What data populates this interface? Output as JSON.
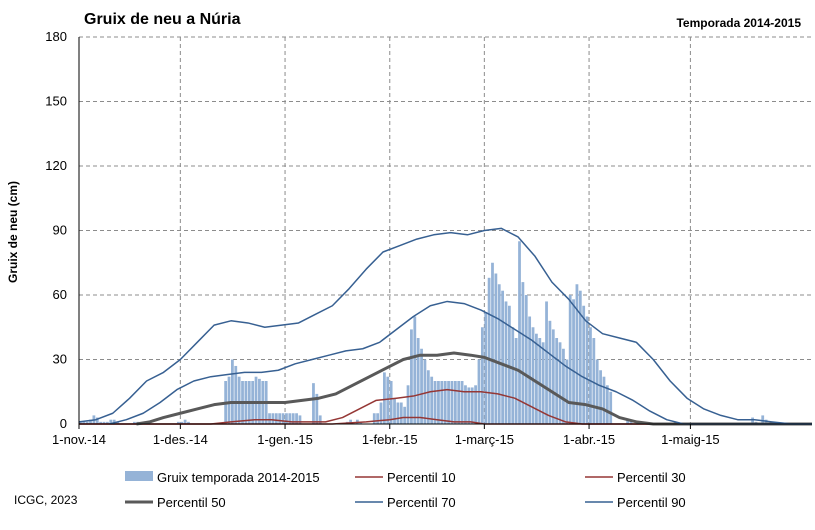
{
  "chart_data": {
    "type": "bar",
    "title": "Gruix de neu a Núria",
    "subtitle": "Temporada 2014-2015",
    "ylabel": "Gruix de neu (cm)",
    "xlabel": "",
    "ylim": [
      0,
      180
    ],
    "yticks": [
      0,
      30,
      60,
      90,
      120,
      150,
      180
    ],
    "xlim": [
      "2014-11-01",
      "2015-06-06"
    ],
    "xticks": [
      {
        "date": "2014-11-01",
        "label": "1-nov.-14"
      },
      {
        "date": "2014-12-01",
        "label": "1-des.-14"
      },
      {
        "date": "2015-01-01",
        "label": "1-gen.-15"
      },
      {
        "date": "2015-02-01",
        "label": "1-febr.-15"
      },
      {
        "date": "2015-03-01",
        "label": "1-març-15"
      },
      {
        "date": "2015-04-01",
        "label": "1-abr.-15"
      },
      {
        "date": "2015-05-01",
        "label": "1-maig-15"
      }
    ],
    "grid": true,
    "legend_position": "bottom",
    "credit": "ICGC, 2023",
    "legend_order": [
      "Gruix temporada 2014-2015",
      "Percentil 10",
      "Percentil 30",
      "Percentil 50",
      "Percentil 70",
      "Percentil 90"
    ],
    "bars": {
      "name": "Gruix temporada 2014-2015",
      "color": "#95b3d7",
      "points": [
        [
          "2014-11-01",
          1
        ],
        [
          "2014-11-02",
          1
        ],
        [
          "2014-11-03",
          1
        ],
        [
          "2014-11-04",
          2
        ],
        [
          "2014-11-05",
          4
        ],
        [
          "2014-11-06",
          3
        ],
        [
          "2014-11-07",
          1
        ],
        [
          "2014-11-08",
          1
        ],
        [
          "2014-11-09",
          1
        ],
        [
          "2014-11-10",
          2
        ],
        [
          "2014-11-11",
          2
        ],
        [
          "2014-11-12",
          1
        ],
        [
          "2014-11-17",
          1
        ],
        [
          "2014-11-18",
          1
        ],
        [
          "2014-11-30",
          1
        ],
        [
          "2014-12-01",
          1
        ],
        [
          "2014-12-02",
          2
        ],
        [
          "2014-12-03",
          1
        ],
        [
          "2014-12-14",
          20
        ],
        [
          "2014-12-15",
          22
        ],
        [
          "2014-12-16",
          30
        ],
        [
          "2014-12-17",
          27
        ],
        [
          "2014-12-18",
          22
        ],
        [
          "2014-12-19",
          20
        ],
        [
          "2014-12-20",
          20
        ],
        [
          "2014-12-21",
          20
        ],
        [
          "2014-12-22",
          20
        ],
        [
          "2014-12-23",
          22
        ],
        [
          "2014-12-24",
          21
        ],
        [
          "2014-12-25",
          20
        ],
        [
          "2014-12-26",
          20
        ],
        [
          "2014-12-27",
          5
        ],
        [
          "2014-12-28",
          5
        ],
        [
          "2014-12-29",
          5
        ],
        [
          "2014-12-30",
          5
        ],
        [
          "2014-12-31",
          5
        ],
        [
          "2015-01-01",
          5
        ],
        [
          "2015-01-02",
          5
        ],
        [
          "2015-01-03",
          5
        ],
        [
          "2015-01-04",
          5
        ],
        [
          "2015-01-05",
          4
        ],
        [
          "2015-01-09",
          19
        ],
        [
          "2015-01-10",
          14
        ],
        [
          "2015-01-11",
          4
        ],
        [
          "2015-01-19",
          1
        ],
        [
          "2015-01-20",
          2
        ],
        [
          "2015-01-22",
          2
        ],
        [
          "2015-01-23",
          1
        ],
        [
          "2015-01-27",
          5
        ],
        [
          "2015-01-28",
          5
        ],
        [
          "2015-01-29",
          10
        ],
        [
          "2015-01-30",
          24
        ],
        [
          "2015-01-31",
          22
        ],
        [
          "2015-02-01",
          20
        ],
        [
          "2015-02-02",
          12
        ],
        [
          "2015-02-03",
          10
        ],
        [
          "2015-02-04",
          10
        ],
        [
          "2015-02-05",
          8
        ],
        [
          "2015-02-06",
          18
        ],
        [
          "2015-02-07",
          44
        ],
        [
          "2015-02-08",
          50
        ],
        [
          "2015-02-09",
          40
        ],
        [
          "2015-02-10",
          35
        ],
        [
          "2015-02-11",
          30
        ],
        [
          "2015-02-12",
          25
        ],
        [
          "2015-02-13",
          22
        ],
        [
          "2015-02-14",
          20
        ],
        [
          "2015-02-15",
          20
        ],
        [
          "2015-02-16",
          20
        ],
        [
          "2015-02-17",
          20
        ],
        [
          "2015-02-18",
          20
        ],
        [
          "2015-02-19",
          20
        ],
        [
          "2015-02-20",
          20
        ],
        [
          "2015-02-21",
          20
        ],
        [
          "2015-02-22",
          20
        ],
        [
          "2015-02-23",
          18
        ],
        [
          "2015-02-24",
          17
        ],
        [
          "2015-02-25",
          17
        ],
        [
          "2015-02-26",
          18
        ],
        [
          "2015-02-27",
          30
        ],
        [
          "2015-02-28",
          45
        ],
        [
          "2015-03-01",
          52
        ],
        [
          "2015-03-02",
          68
        ],
        [
          "2015-03-03",
          75
        ],
        [
          "2015-03-04",
          70
        ],
        [
          "2015-03-05",
          65
        ],
        [
          "2015-03-06",
          62
        ],
        [
          "2015-03-07",
          57
        ],
        [
          "2015-03-08",
          55
        ],
        [
          "2015-03-09",
          45
        ],
        [
          "2015-03-10",
          40
        ],
        [
          "2015-03-11",
          85
        ],
        [
          "2015-03-12",
          66
        ],
        [
          "2015-03-13",
          60
        ],
        [
          "2015-03-14",
          50
        ],
        [
          "2015-03-15",
          45
        ],
        [
          "2015-03-16",
          42
        ],
        [
          "2015-03-17",
          40
        ],
        [
          "2015-03-18",
          38
        ],
        [
          "2015-03-19",
          57
        ],
        [
          "2015-03-20",
          48
        ],
        [
          "2015-03-21",
          44
        ],
        [
          "2015-03-22",
          40
        ],
        [
          "2015-03-23",
          38
        ],
        [
          "2015-03-24",
          35
        ],
        [
          "2015-03-25",
          30
        ],
        [
          "2015-03-26",
          60
        ],
        [
          "2015-03-27",
          58
        ],
        [
          "2015-03-28",
          65
        ],
        [
          "2015-03-29",
          62
        ],
        [
          "2015-03-30",
          55
        ],
        [
          "2015-03-31",
          50
        ],
        [
          "2015-04-01",
          45
        ],
        [
          "2015-04-02",
          40
        ],
        [
          "2015-04-03",
          30
        ],
        [
          "2015-04-04",
          25
        ],
        [
          "2015-04-05",
          22
        ],
        [
          "2015-04-06",
          18
        ],
        [
          "2015-04-07",
          15
        ],
        [
          "2015-04-12",
          2
        ],
        [
          "2015-04-13",
          2
        ],
        [
          "2015-05-19",
          3
        ],
        [
          "2015-05-20",
          1
        ],
        [
          "2015-05-22",
          4
        ],
        [
          "2015-05-23",
          2
        ]
      ]
    },
    "series": [
      {
        "name": "Percentil 10",
        "color": "#953735",
        "width": 1.5,
        "points": [
          [
            "2014-11-01",
            0
          ],
          [
            "2015-01-15",
            0
          ],
          [
            "2015-01-25",
            1
          ],
          [
            "2015-02-01",
            2
          ],
          [
            "2015-02-05",
            3
          ],
          [
            "2015-02-10",
            3
          ],
          [
            "2015-02-15",
            2
          ],
          [
            "2015-02-20",
            1
          ],
          [
            "2015-02-25",
            1
          ],
          [
            "2015-03-01",
            0
          ],
          [
            "2015-06-06",
            0
          ]
        ]
      },
      {
        "name": "Percentil 30",
        "color": "#953735",
        "width": 1.5,
        "points": [
          [
            "2014-11-01",
            0
          ],
          [
            "2014-12-10",
            0
          ],
          [
            "2014-12-16",
            1
          ],
          [
            "2014-12-23",
            2
          ],
          [
            "2014-12-28",
            2
          ],
          [
            "2015-01-03",
            1
          ],
          [
            "2015-01-13",
            1
          ],
          [
            "2015-01-18",
            3
          ],
          [
            "2015-01-23",
            7
          ],
          [
            "2015-01-28",
            11
          ],
          [
            "2015-02-03",
            12
          ],
          [
            "2015-02-08",
            13
          ],
          [
            "2015-02-13",
            15
          ],
          [
            "2015-02-18",
            16
          ],
          [
            "2015-02-23",
            15
          ],
          [
            "2015-02-28",
            15
          ],
          [
            "2015-03-05",
            14
          ],
          [
            "2015-03-10",
            12
          ],
          [
            "2015-03-15",
            8
          ],
          [
            "2015-03-20",
            4
          ],
          [
            "2015-03-25",
            1
          ],
          [
            "2015-03-30",
            0
          ],
          [
            "2015-06-06",
            0
          ]
        ]
      },
      {
        "name": "Percentil 50",
        "color": "#595959",
        "width": 3,
        "points": [
          [
            "2014-11-18",
            0
          ],
          [
            "2014-11-22",
            1
          ],
          [
            "2014-11-26",
            3
          ],
          [
            "2014-12-01",
            5
          ],
          [
            "2014-12-06",
            7
          ],
          [
            "2014-12-11",
            9
          ],
          [
            "2014-12-16",
            10
          ],
          [
            "2014-12-21",
            10
          ],
          [
            "2014-12-26",
            10
          ],
          [
            "2015-01-01",
            10
          ],
          [
            "2015-01-06",
            11
          ],
          [
            "2015-01-11",
            12
          ],
          [
            "2015-01-16",
            14
          ],
          [
            "2015-01-21",
            18
          ],
          [
            "2015-01-26",
            22
          ],
          [
            "2015-01-31",
            26
          ],
          [
            "2015-02-05",
            30
          ],
          [
            "2015-02-10",
            32
          ],
          [
            "2015-02-15",
            32
          ],
          [
            "2015-02-20",
            33
          ],
          [
            "2015-02-25",
            32
          ],
          [
            "2015-03-01",
            31
          ],
          [
            "2015-03-06",
            28
          ],
          [
            "2015-03-11",
            25
          ],
          [
            "2015-03-16",
            20
          ],
          [
            "2015-03-21",
            15
          ],
          [
            "2015-03-26",
            10
          ],
          [
            "2015-03-31",
            9
          ],
          [
            "2015-04-05",
            7
          ],
          [
            "2015-04-10",
            3
          ],
          [
            "2015-04-15",
            1
          ],
          [
            "2015-04-20",
            0
          ],
          [
            "2015-06-06",
            0
          ]
        ]
      },
      {
        "name": "Percentil 70",
        "color": "#376092",
        "width": 1.5,
        "points": [
          [
            "2014-11-10",
            0
          ],
          [
            "2014-11-15",
            2
          ],
          [
            "2014-11-20",
            5
          ],
          [
            "2014-11-25",
            10
          ],
          [
            "2014-11-30",
            16
          ],
          [
            "2014-12-05",
            20
          ],
          [
            "2014-12-10",
            22
          ],
          [
            "2014-12-15",
            23
          ],
          [
            "2014-12-20",
            24
          ],
          [
            "2014-12-25",
            24
          ],
          [
            "2014-12-30",
            25
          ],
          [
            "2015-01-04",
            28
          ],
          [
            "2015-01-09",
            30
          ],
          [
            "2015-01-14",
            32
          ],
          [
            "2015-01-19",
            34
          ],
          [
            "2015-01-24",
            35
          ],
          [
            "2015-01-29",
            38
          ],
          [
            "2015-02-03",
            44
          ],
          [
            "2015-02-08",
            50
          ],
          [
            "2015-02-13",
            55
          ],
          [
            "2015-02-18",
            57
          ],
          [
            "2015-02-23",
            56
          ],
          [
            "2015-02-28",
            53
          ],
          [
            "2015-03-05",
            49
          ],
          [
            "2015-03-10",
            44
          ],
          [
            "2015-03-15",
            39
          ],
          [
            "2015-03-20",
            33
          ],
          [
            "2015-03-25",
            27
          ],
          [
            "2015-03-30",
            22
          ],
          [
            "2015-04-04",
            18
          ],
          [
            "2015-04-09",
            15
          ],
          [
            "2015-04-14",
            11
          ],
          [
            "2015-04-19",
            6
          ],
          [
            "2015-04-24",
            2
          ],
          [
            "2015-04-29",
            0
          ],
          [
            "2015-06-06",
            0
          ]
        ]
      },
      {
        "name": "Percentil 90",
        "color": "#376092",
        "width": 1.5,
        "points": [
          [
            "2014-11-01",
            1
          ],
          [
            "2014-11-06",
            2
          ],
          [
            "2014-11-11",
            5
          ],
          [
            "2014-11-16",
            12
          ],
          [
            "2014-11-21",
            20
          ],
          [
            "2014-11-26",
            24
          ],
          [
            "2014-12-01",
            30
          ],
          [
            "2014-12-06",
            38
          ],
          [
            "2014-12-11",
            46
          ],
          [
            "2014-12-16",
            48
          ],
          [
            "2014-12-21",
            47
          ],
          [
            "2014-12-26",
            45
          ],
          [
            "2014-12-31",
            46
          ],
          [
            "2015-01-05",
            47
          ],
          [
            "2015-01-10",
            51
          ],
          [
            "2015-01-15",
            55
          ],
          [
            "2015-01-20",
            63
          ],
          [
            "2015-01-25",
            72
          ],
          [
            "2015-01-30",
            80
          ],
          [
            "2015-02-04",
            83
          ],
          [
            "2015-02-09",
            86
          ],
          [
            "2015-02-14",
            88
          ],
          [
            "2015-02-19",
            89
          ],
          [
            "2015-02-24",
            88
          ],
          [
            "2015-03-01",
            90
          ],
          [
            "2015-03-06",
            91
          ],
          [
            "2015-03-11",
            87
          ],
          [
            "2015-03-16",
            78
          ],
          [
            "2015-03-21",
            66
          ],
          [
            "2015-03-26",
            58
          ],
          [
            "2015-03-31",
            48
          ],
          [
            "2015-04-05",
            42
          ],
          [
            "2015-04-10",
            40
          ],
          [
            "2015-04-15",
            38
          ],
          [
            "2015-04-20",
            30
          ],
          [
            "2015-04-25",
            20
          ],
          [
            "2015-04-30",
            12
          ],
          [
            "2015-05-05",
            7
          ],
          [
            "2015-05-10",
            4
          ],
          [
            "2015-05-15",
            2
          ],
          [
            "2015-05-20",
            2
          ],
          [
            "2015-05-25",
            1
          ],
          [
            "2015-05-31",
            0
          ],
          [
            "2015-06-06",
            0
          ]
        ]
      }
    ]
  }
}
